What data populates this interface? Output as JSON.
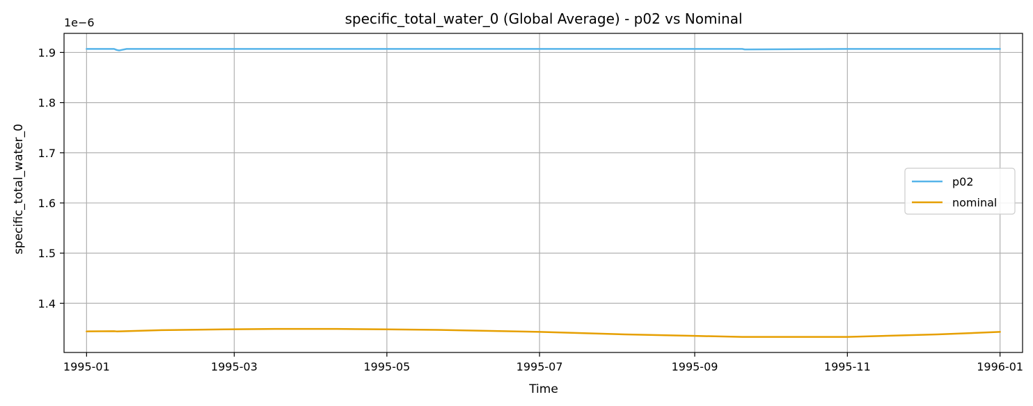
{
  "chart_data": {
    "type": "line",
    "title": "specific_total_water_0 (Global Average) - p02 vs Nominal",
    "xlabel": "Time",
    "ylabel": "specific_total_water_0",
    "offset_label": "1e−6",
    "x_tick_labels": [
      "1995-01",
      "1995-03",
      "1995-05",
      "1995-07",
      "1995-09",
      "1995-11",
      "1996-01"
    ],
    "x_tick_values": [
      0,
      59,
      120,
      181,
      243,
      304,
      365
    ],
    "x_range": [
      -9,
      374
    ],
    "y_tick_labels": [
      "1.4",
      "1.5",
      "1.6",
      "1.7",
      "1.8",
      "1.9"
    ],
    "y_tick_values": [
      1.4,
      1.5,
      1.6,
      1.7,
      1.8,
      1.9
    ],
    "y_range": [
      1.302,
      1.938
    ],
    "y_unit_multiplier": "1e-6",
    "grid": true,
    "legend_position": "center-right",
    "series": [
      {
        "name": "p02",
        "color": "#56b4e9",
        "x": [
          0,
          11,
          12,
          13,
          14,
          16,
          60,
          120,
          181,
          243,
          262,
          263,
          304,
          365
        ],
        "y": [
          1.907,
          1.907,
          1.905,
          1.904,
          1.905,
          1.907,
          1.907,
          1.907,
          1.907,
          1.907,
          1.907,
          1.906,
          1.907,
          1.907
        ]
      },
      {
        "name": "nominal",
        "color": "#e69f00",
        "x": [
          0,
          11,
          12,
          30,
          55,
          75,
          100,
          120,
          140,
          181,
          215,
          243,
          262,
          304,
          340,
          365
        ],
        "y": [
          1.344,
          1.3445,
          1.344,
          1.3465,
          1.348,
          1.349,
          1.349,
          1.348,
          1.347,
          1.343,
          1.338,
          1.335,
          1.333,
          1.333,
          1.338,
          1.343
        ]
      }
    ]
  }
}
